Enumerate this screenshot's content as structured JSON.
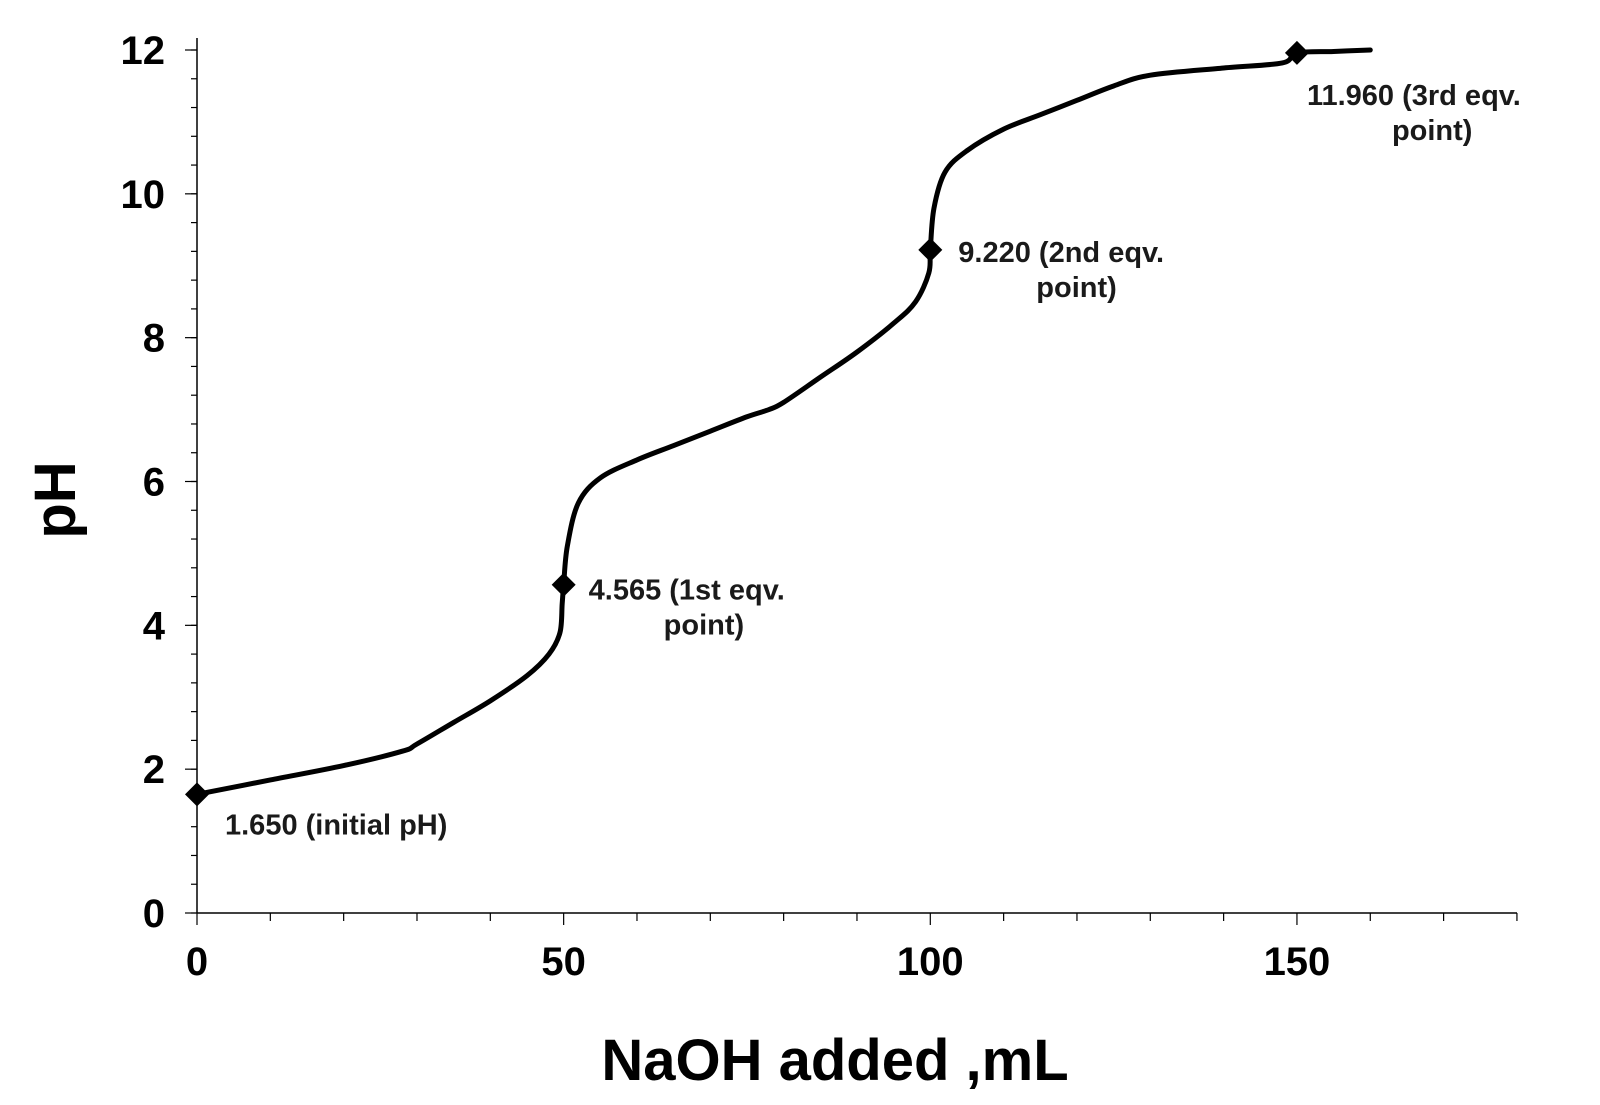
{
  "chart_data": {
    "type": "line",
    "title": "",
    "xlabel": "NaOH added ,mL",
    "ylabel": "pH",
    "xlim": [
      0,
      180
    ],
    "ylim": [
      0,
      12
    ],
    "x_ticks": [
      0,
      50,
      100,
      150
    ],
    "y_ticks": [
      0,
      2,
      4,
      6,
      8,
      10,
      12
    ],
    "grid": false,
    "legend": "none",
    "series": [
      {
        "points": [
          [
            0,
            1.65
          ],
          [
            10,
            1.85
          ],
          [
            20,
            2.05
          ],
          [
            28,
            2.25
          ],
          [
            30,
            2.35
          ],
          [
            35,
            2.65
          ],
          [
            40,
            2.95
          ],
          [
            45,
            3.3
          ],
          [
            48,
            3.6
          ],
          [
            49.5,
            3.9
          ],
          [
            49.8,
            4.3
          ],
          [
            50,
            4.565
          ],
          [
            50.5,
            5.1
          ],
          [
            52,
            5.7
          ],
          [
            55,
            6.05
          ],
          [
            60,
            6.3
          ],
          [
            65,
            6.5
          ],
          [
            70,
            6.7
          ],
          [
            75,
            6.9
          ],
          [
            78,
            7.0
          ],
          [
            80,
            7.1
          ],
          [
            85,
            7.45
          ],
          [
            90,
            7.8
          ],
          [
            95,
            8.2
          ],
          [
            98,
            8.5
          ],
          [
            99.8,
            8.9
          ],
          [
            100,
            9.22
          ],
          [
            100.5,
            9.8
          ],
          [
            102,
            10.3
          ],
          [
            105,
            10.6
          ],
          [
            110,
            10.9
          ],
          [
            115,
            11.1
          ],
          [
            120,
            11.3
          ],
          [
            125,
            11.5
          ],
          [
            130,
            11.65
          ],
          [
            140,
            11.75
          ],
          [
            148,
            11.82
          ],
          [
            150,
            11.96
          ],
          [
            155,
            11.98
          ],
          [
            160,
            12.0
          ]
        ]
      }
    ],
    "markers": [
      {
        "x": 0,
        "y": 1.65
      },
      {
        "x": 50,
        "y": 4.565
      },
      {
        "x": 100,
        "y": 9.22
      },
      {
        "x": 150,
        "y": 11.96
      }
    ],
    "annotations": [
      {
        "x": 0,
        "y": 1.65,
        "lines": [
          "1.650 (initial  pH)"
        ]
      },
      {
        "x": 50,
        "y": 4.565,
        "lines": [
          "4.565 (1st  eqv.",
          "point)"
        ]
      },
      {
        "x": 100,
        "y": 9.22,
        "lines": [
          "9.220 (2nd  eqv.",
          "point)"
        ]
      },
      {
        "x": 150,
        "y": 11.96,
        "lines": [
          "11.960 (3rd  eqv.",
          "point)"
        ]
      }
    ]
  }
}
